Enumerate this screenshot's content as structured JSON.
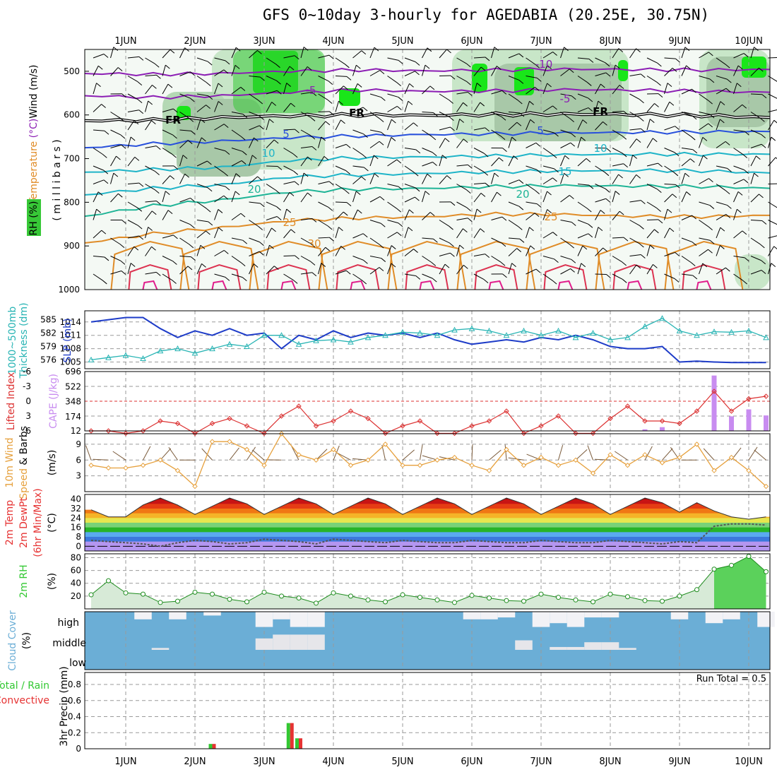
{
  "title": "GFS 0~10day 3-hourly for AGEDABIA (20.25E, 30.75N)",
  "dates": [
    "1JUN",
    "2JUN",
    "3JUN",
    "4JUN",
    "5JUN",
    "6JUN",
    "7JUN",
    "8JUN",
    "9JUN",
    "10JUN"
  ],
  "colors": {
    "rh_green": "#37c837",
    "temp_purple": "#8c1eb4",
    "temp_blue": "#2850dc",
    "temp_cyan": "#1eb4c8",
    "temp_teal": "#1eb496",
    "temp_orange": "#e08c28",
    "temp_red": "#dc3250",
    "slp_blue": "#1e3cc8",
    "thickness_cyan": "#28b4b4",
    "li_red": "#dc3232",
    "cape_purple": "#c88cf0",
    "wind_orange": "#e6a03c",
    "cloud_blue": "#6baed6",
    "rain_green": "#32c832",
    "conv_red": "#e63232"
  },
  "chart_data": [
    {
      "type": "heatmap",
      "name": "upper-air cross section",
      "ylabel_parts": [
        "Wind",
        "(m/s)",
        "Temperature",
        "(°C)",
        "RH (%)",
        "( m i l l i b a r s )"
      ],
      "y_ticks": [
        500,
        600,
        700,
        800,
        900,
        1000
      ],
      "ylim": [
        450,
        1000
      ],
      "isotherm_labels": [
        "-10",
        "-5",
        "FR",
        "5",
        "10",
        "15",
        "20",
        "25",
        "30"
      ],
      "isotherms": [
        {
          "label": "-10",
          "x": [
            0,
            1,
            2,
            3,
            4,
            5,
            6,
            7,
            8,
            9,
            10
          ],
          "p": [
            505,
            507,
            505,
            500,
            497,
            499,
            497,
            495,
            496,
            497,
            496
          ]
        },
        {
          "label": "-5",
          "x": [
            0,
            1,
            2,
            3,
            4,
            5,
            6,
            7,
            8,
            9,
            10
          ],
          "p": [
            556,
            560,
            556,
            548,
            543,
            546,
            545,
            542,
            543,
            546,
            548
          ]
        },
        {
          "label": "FR",
          "x": [
            0,
            1,
            2,
            3,
            4,
            5,
            6,
            7,
            8,
            9,
            10
          ],
          "p": [
            613,
            612,
            606,
            602,
            600,
            601,
            599,
            598,
            599,
            601,
            606
          ]
        },
        {
          "label": "5",
          "x": [
            0,
            1,
            2,
            3,
            4,
            5,
            6,
            7,
            8,
            9,
            10
          ],
          "p": [
            675,
            666,
            660,
            652,
            648,
            645,
            643,
            641,
            640,
            639,
            638
          ]
        },
        {
          "label": "10",
          "x": [
            0,
            1,
            2,
            3,
            4,
            5,
            6,
            7,
            8,
            9,
            10
          ],
          "p": [
            731,
            725,
            720,
            704,
            698,
            696,
            694,
            691,
            690,
            690,
            690
          ]
        },
        {
          "label": "15",
          "x": [
            0,
            1,
            2,
            3,
            4,
            5,
            6,
            7,
            8,
            9,
            10
          ],
          "p": [
            783,
            768,
            760,
            742,
            737,
            734,
            730,
            728,
            727,
            728,
            733
          ]
        },
        {
          "label": "20",
          "x": [
            0,
            1,
            2,
            3,
            4,
            5,
            6,
            7,
            8,
            9,
            10
          ],
          "p": [
            832,
            808,
            795,
            776,
            770,
            768,
            764,
            762,
            763,
            764,
            768
          ]
        },
        {
          "label": "25",
          "x": [
            0,
            1,
            2,
            3,
            4,
            5,
            6,
            7,
            8,
            9,
            10
          ],
          "p": [
            893,
            872,
            858,
            842,
            836,
            833,
            827,
            828,
            832,
            833,
            830
          ]
        }
      ]
    },
    {
      "type": "line",
      "name": "SLP and 1000-500mb thickness",
      "ylabel_left": "1000~500mb thickness (dm)",
      "ylabel_right": "SLP (mb)",
      "left_ticks": [
        585,
        582,
        579,
        576
      ],
      "right_ticks": [
        1014,
        1011,
        1008,
        1005
      ],
      "ylim_left": [
        574,
        587
      ],
      "ylim_right": [
        1003.5,
        1016.5
      ],
      "x": [
        0.5,
        0.75,
        1,
        1.25,
        1.5,
        1.75,
        2,
        2.25,
        2.5,
        2.75,
        3,
        3.25,
        3.5,
        3.75,
        4,
        4.25,
        4.5,
        4.75,
        5,
        5.25,
        5.5,
        5.75,
        6,
        6.25,
        6.5,
        6.75,
        7,
        7.25,
        7.5,
        7.75,
        8,
        8.25,
        8.5,
        8.75,
        9,
        9.25,
        9.5,
        9.75,
        10,
        10.25
      ],
      "series": [
        {
          "name": "SLP (mb)",
          "values": [
            1014,
            1014.5,
            1015,
            1015,
            1012.5,
            1010.5,
            1012,
            1011,
            1012.5,
            1011,
            1011.5,
            1008,
            1011,
            1010,
            1012,
            1010.5,
            1011.5,
            1011,
            1011.5,
            1010.5,
            1011.5,
            1010,
            1009,
            1009.5,
            1010,
            1009.5,
            1010.5,
            1010,
            1011,
            1010,
            1008.5,
            1008,
            1008,
            1008.5,
            1005,
            1005.2,
            1005,
            1004.9,
            1004.9,
            1004.9
          ]
        },
        {
          "name": "Thickness (dm)",
          "values": [
            576,
            576.5,
            577,
            576.3,
            578,
            578.5,
            577.5,
            578.5,
            579.5,
            579,
            581.5,
            581.5,
            579.5,
            580.3,
            580.5,
            580,
            581,
            581.5,
            582.2,
            582,
            581.5,
            582.7,
            583,
            582.5,
            581.5,
            582.5,
            581.5,
            582.5,
            581,
            582,
            580.5,
            581,
            583.5,
            585.3,
            582.5,
            581.5,
            582.3,
            582.2,
            582.5,
            581
          ]
        }
      ]
    },
    {
      "type": "bar",
      "name": "Lifted Index and CAPE",
      "ylabel_left": "Lifted Index",
      "ylabel_right": "CAPE (J/kg)",
      "left_ticks": [
        -6,
        -3,
        0,
        3,
        6
      ],
      "right_ticks": [
        696,
        522,
        348,
        174,
        12
      ],
      "x": [
        0.5,
        0.75,
        1,
        1.25,
        1.5,
        1.75,
        2,
        2.25,
        2.5,
        2.75,
        3,
        3.25,
        3.5,
        3.75,
        4,
        4.25,
        4.5,
        4.75,
        5,
        5.25,
        5.5,
        5.75,
        6,
        6.25,
        6.5,
        6.75,
        7,
        7.25,
        7.5,
        7.75,
        8,
        8.25,
        8.5,
        8.75,
        9,
        9.25,
        9.5,
        9.75,
        10,
        10.25
      ],
      "series": [
        {
          "name": "Lifted Index",
          "values": [
            6,
            6,
            6.5,
            6,
            4,
            4.5,
            6.5,
            4.5,
            3.5,
            5,
            6.5,
            3,
            1,
            5,
            4,
            2,
            3.5,
            6.5,
            5,
            4,
            6.5,
            6.5,
            5,
            4,
            2,
            6.5,
            5,
            3,
            6.5,
            6.5,
            3.5,
            1,
            4,
            4,
            4.5,
            2,
            -2,
            2,
            -0.5,
            -1
          ]
        },
        {
          "name": "CAPE (J/kg)",
          "values": [
            0,
            0,
            0,
            0,
            0,
            0,
            0,
            0,
            0,
            0,
            0,
            0,
            0,
            0,
            0,
            0,
            0,
            0,
            0,
            0,
            0,
            0,
            0,
            0,
            0,
            0,
            0,
            0,
            0,
            0,
            0,
            0,
            30,
            55,
            0,
            0,
            650,
            180,
            260,
            190
          ]
        }
      ]
    },
    {
      "type": "line",
      "name": "10m wind speed and barbs",
      "ylabel": "10m Wind Speed & Barbs (m/s)",
      "y_ticks": [
        9,
        6,
        3
      ],
      "ylim": [
        0,
        11
      ],
      "x": [
        0.5,
        0.75,
        1,
        1.25,
        1.5,
        1.75,
        2,
        2.25,
        2.5,
        2.75,
        3,
        3.25,
        3.5,
        3.75,
        4,
        4.25,
        4.5,
        4.75,
        5,
        5.25,
        5.5,
        5.75,
        6,
        6.25,
        6.5,
        6.75,
        7,
        7.25,
        7.5,
        7.75,
        8,
        8.25,
        8.5,
        8.75,
        9,
        9.25,
        9.5,
        9.75,
        10,
        10.25
      ],
      "series": [
        {
          "name": "Speed",
          "values": [
            5,
            4.5,
            4.5,
            5,
            6,
            4,
            1,
            9.5,
            9.5,
            8,
            5,
            11,
            7,
            6,
            8,
            5,
            6,
            9,
            5,
            5,
            6,
            6.5,
            5,
            4,
            8,
            5,
            6.5,
            5,
            6,
            3.5,
            7,
            5,
            7,
            5.5,
            6.5,
            9,
            4,
            6.5,
            4,
            1
          ]
        }
      ]
    },
    {
      "type": "area",
      "name": "2m temperature and dewpoint",
      "ylabel": "2m Temp 2m DewPt (6hr Min/Max) (°C)",
      "y_ticks": [
        40,
        32,
        24,
        16,
        8,
        0
      ],
      "ylim": [
        -4,
        44
      ],
      "x": [
        0.5,
        0.75,
        1,
        1.25,
        1.5,
        1.75,
        2,
        2.25,
        2.5,
        2.75,
        3,
        3.25,
        3.5,
        3.75,
        4,
        4.25,
        4.5,
        4.75,
        5,
        5.25,
        5.5,
        5.75,
        6,
        6.25,
        6.5,
        6.75,
        7,
        7.25,
        7.5,
        7.75,
        8,
        8.25,
        8.5,
        8.75,
        9,
        9.25,
        9.5,
        9.75,
        10,
        10.25
      ],
      "series": [
        {
          "name": "2m Temp",
          "values": [
            31,
            25,
            25,
            35,
            41,
            35,
            27,
            34,
            41,
            36,
            27,
            34,
            41,
            36,
            27,
            34,
            41,
            36,
            27,
            34,
            41,
            36,
            27,
            34,
            41,
            36,
            27,
            34,
            41,
            36,
            27,
            34,
            41,
            37,
            29,
            37,
            30,
            25,
            23,
            25
          ]
        },
        {
          "name": "2m DewPt",
          "values": [
            5,
            4,
            3,
            2,
            0,
            3,
            5,
            4,
            2,
            3,
            6,
            5,
            4,
            2,
            6,
            5,
            4,
            3,
            5,
            4,
            3,
            3,
            5,
            4,
            3,
            3,
            5,
            4,
            3,
            3,
            5,
            4,
            3,
            2,
            4,
            3,
            17,
            19,
            19,
            18
          ]
        }
      ]
    },
    {
      "type": "area",
      "name": "2m RH",
      "ylabel": "2m RH (%)",
      "y_ticks": [
        80,
        60,
        40,
        20
      ],
      "ylim": [
        0,
        86
      ],
      "x": [
        0.5,
        0.75,
        1,
        1.25,
        1.5,
        1.75,
        2,
        2.25,
        2.5,
        2.75,
        3,
        3.25,
        3.5,
        3.75,
        4,
        4.25,
        4.5,
        4.75,
        5,
        5.25,
        5.5,
        5.75,
        6,
        6.25,
        6.5,
        6.75,
        7,
        7.25,
        7.5,
        7.75,
        8,
        8.25,
        8.5,
        8.75,
        9,
        9.25,
        9.5,
        9.75,
        10,
        10.25
      ],
      "series": [
        {
          "name": "2m RH",
          "values": [
            22,
            44,
            25,
            23,
            10,
            12,
            26,
            23,
            15,
            11,
            26,
            20,
            17,
            9,
            25,
            20,
            14,
            11,
            22,
            18,
            14,
            10,
            21,
            17,
            13,
            12,
            23,
            18,
            14,
            11,
            23,
            19,
            13,
            12,
            20,
            30,
            62,
            68,
            82,
            58
          ]
        }
      ]
    },
    {
      "type": "heatmap",
      "name": "cloud cover",
      "ylabel": "Cloud Cover (%)",
      "levels": [
        "high",
        "middle",
        "low"
      ],
      "x": [
        0.5,
        0.75,
        1,
        1.25,
        1.5,
        1.75,
        2,
        2.25,
        2.5,
        2.75,
        3,
        3.25,
        3.5,
        3.75,
        4,
        4.25,
        4.5,
        4.75,
        5,
        5.25,
        5.5,
        5.75,
        6,
        6.25,
        6.5,
        6.75,
        7,
        7.25,
        7.5,
        7.75,
        8,
        8.25,
        8.5,
        8.75,
        9,
        9.25,
        9.5,
        9.75,
        10,
        10.25
      ],
      "high": [
        0,
        0,
        0,
        40,
        0,
        40,
        0,
        20,
        0,
        0,
        80,
        40,
        80,
        80,
        0,
        0,
        0,
        0,
        0,
        0,
        0,
        0,
        40,
        40,
        30,
        0,
        80,
        60,
        80,
        30,
        30,
        0,
        0,
        0,
        40,
        0,
        60,
        40,
        0,
        80
      ],
      "middle": [
        0,
        0,
        0,
        0,
        10,
        0,
        0,
        0,
        0,
        0,
        60,
        80,
        80,
        80,
        0,
        0,
        0,
        0,
        0,
        0,
        0,
        0,
        0,
        0,
        0,
        50,
        0,
        15,
        15,
        40,
        40,
        10,
        0,
        0,
        0,
        0,
        0,
        0,
        0,
        0
      ]
    },
    {
      "type": "bar",
      "name": "3hr precip",
      "ylabel": "3hr Precip (mm)",
      "legend": [
        "Total / Rain",
        "Convective"
      ],
      "annotation": "Run Total = 0.5",
      "y_ticks": [
        0.8,
        0.6,
        0.4,
        0.2,
        0
      ],
      "ylim": [
        0,
        0.95
      ],
      "x": [
        2.25,
        3.375,
        3.5
      ],
      "series": [
        {
          "name": "Total / Rain",
          "values": [
            0.06,
            0.32,
            0.13
          ]
        },
        {
          "name": "Convective",
          "values": [
            0.06,
            0.32,
            0.13
          ]
        }
      ]
    }
  ]
}
